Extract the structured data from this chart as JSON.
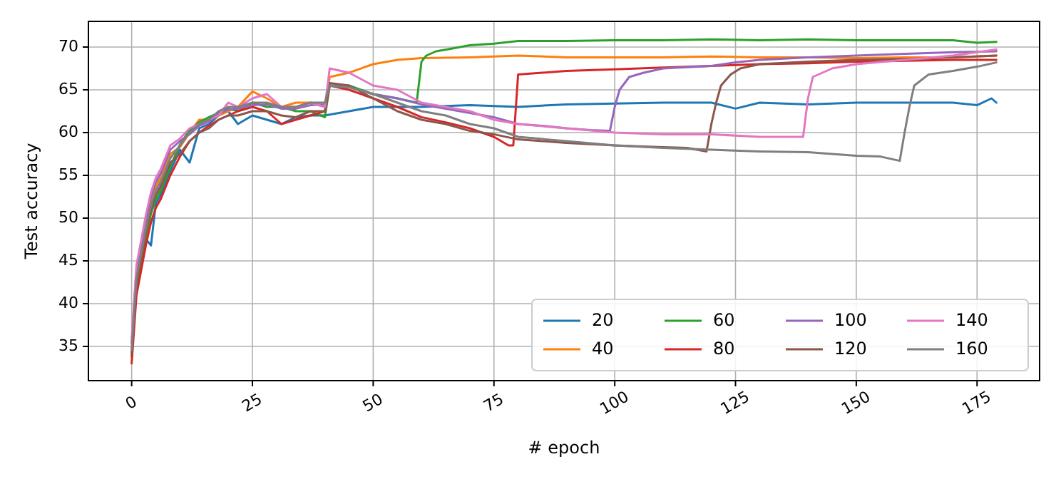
{
  "chart_data": {
    "type": "line",
    "xlabel": "# epoch",
    "ylabel": "Test accuracy",
    "xlim": [
      -8.95,
      187.95
    ],
    "xticks": [
      0,
      25,
      50,
      75,
      100,
      125,
      150,
      175
    ],
    "ylim": [
      31,
      73
    ],
    "yticks": [
      35,
      40,
      45,
      50,
      55,
      60,
      65,
      70
    ],
    "grid": true,
    "legend": "bottom right",
    "marker": "none",
    "line_style": "solid",
    "series": [
      {
        "name": "20",
        "color": "#1f77b4",
        "x": [
          2,
          3,
          4,
          5,
          6,
          8,
          10,
          12,
          14,
          16,
          18,
          20,
          22,
          25,
          28,
          31,
          34,
          37,
          40,
          45,
          50,
          60,
          70,
          80,
          90,
          100,
          110,
          120,
          125,
          130,
          140,
          150,
          160,
          170,
          175,
          178,
          179
        ],
        "values": [
          44.5,
          47.5,
          46.8,
          51.7,
          52.7,
          55.5,
          58,
          56.5,
          60.5,
          61,
          62,
          62.5,
          61,
          62,
          61.5,
          61,
          61.8,
          62,
          62,
          62.5,
          63,
          63,
          63.2,
          63,
          63.3,
          63.4,
          63.5,
          63.5,
          62.8,
          63.5,
          63.3,
          63.5,
          63.5,
          63.5,
          63.2,
          64,
          63.5
        ]
      },
      {
        "name": "40",
        "color": "#ff7f0e",
        "x": [
          3,
          4,
          5,
          6,
          8,
          10,
          12,
          14,
          16,
          18,
          20,
          22,
          25,
          28,
          31,
          34,
          37,
          40,
          41,
          45,
          50,
          55,
          60,
          70,
          80,
          90,
          100,
          110,
          120,
          130,
          140,
          150,
          160,
          170,
          179
        ],
        "values": [
          49.5,
          52,
          53.7,
          54.7,
          57.5,
          58.3,
          60,
          61.5,
          61.5,
          62,
          62.5,
          63,
          64.8,
          64,
          63,
          63.5,
          63.5,
          63,
          66.5,
          67,
          68,
          68.5,
          68.7,
          68.8,
          69,
          68.8,
          68.8,
          68.8,
          68.9,
          68.8,
          68.8,
          68.7,
          68.8,
          68.8,
          69
        ]
      },
      {
        "name": "60",
        "color": "#2ca02c",
        "x": [
          0,
          1,
          2,
          3,
          4,
          5,
          6,
          8,
          10,
          12,
          14,
          16,
          18,
          20,
          22,
          25,
          28,
          31,
          34,
          37,
          40,
          41,
          45,
          50,
          55,
          59,
          60,
          61,
          63,
          66,
          70,
          75,
          80,
          90,
          100,
          110,
          120,
          130,
          140,
          150,
          160,
          170,
          175,
          179
        ],
        "values": [
          33.8,
          42,
          45,
          48,
          50.5,
          52.2,
          53.2,
          56,
          58.6,
          60.3,
          61.2,
          61.8,
          62.3,
          62.8,
          62.5,
          63.5,
          63,
          63,
          62.5,
          62.5,
          61.8,
          65.5,
          65.5,
          64.5,
          64,
          63.5,
          68.3,
          69,
          69.5,
          69.8,
          70.2,
          70.4,
          70.7,
          70.7,
          70.8,
          70.8,
          70.9,
          70.8,
          70.9,
          70.8,
          70.8,
          70.8,
          70.5,
          70.6
        ]
      },
      {
        "name": "80",
        "color": "#d62728",
        "x": [
          0,
          1,
          2,
          3,
          4,
          5,
          6,
          8,
          10,
          12,
          14,
          16,
          18,
          20,
          22,
          25,
          28,
          31,
          34,
          37,
          40,
          41,
          45,
          50,
          55,
          60,
          65,
          70,
          75,
          78,
          79,
          80,
          85,
          90,
          100,
          110,
          120,
          125,
          130,
          140,
          150,
          160,
          170,
          179
        ],
        "values": [
          33,
          41,
          44,
          47,
          49.5,
          51.2,
          52.2,
          55,
          57.2,
          59,
          60,
          60.8,
          61.5,
          62,
          62.5,
          63,
          62.5,
          61,
          61.5,
          62,
          62.5,
          65.5,
          65,
          64,
          63,
          61.8,
          61.2,
          60.5,
          59.5,
          58.5,
          58.5,
          66.8,
          67,
          67.2,
          67.4,
          67.6,
          67.8,
          67.9,
          68,
          68.1,
          68.3,
          68.4,
          68.5,
          68.5
        ]
      },
      {
        "name": "100",
        "color": "#9467bd",
        "x": [
          0,
          1,
          2,
          3,
          4,
          5,
          6,
          8,
          10,
          12,
          14,
          16,
          18,
          20,
          22,
          25,
          28,
          31,
          34,
          37,
          40,
          41,
          45,
          50,
          55,
          60,
          65,
          70,
          75,
          80,
          85,
          90,
          95,
          99,
          100,
          101,
          103,
          106,
          110,
          120,
          125,
          130,
          140,
          150,
          160,
          170,
          179
        ],
        "values": [
          35.4,
          44,
          47,
          50,
          52.5,
          54.2,
          55.2,
          58,
          59,
          59.8,
          60.8,
          61.3,
          62.2,
          62.7,
          62.8,
          63.2,
          63.3,
          62.8,
          62.8,
          63.2,
          63.3,
          65.5,
          65.3,
          64.5,
          64,
          63.3,
          62.8,
          62.3,
          61.8,
          61,
          60.8,
          60.5,
          60.3,
          60.2,
          63,
          65,
          66.5,
          67,
          67.5,
          67.8,
          68.2,
          68.5,
          68.8,
          69,
          69.2,
          69.4,
          69.5
        ]
      },
      {
        "name": "120",
        "color": "#8c564b",
        "x": [
          0,
          1,
          2,
          3,
          4,
          5,
          6,
          8,
          10,
          12,
          14,
          16,
          18,
          20,
          22,
          25,
          28,
          31,
          34,
          37,
          40,
          41,
          45,
          50,
          55,
          60,
          65,
          70,
          75,
          80,
          90,
          100,
          110,
          115,
          119,
          120,
          121,
          122,
          124,
          126,
          130,
          140,
          150,
          160,
          170,
          179
        ],
        "values": [
          34.2,
          42.5,
          45.5,
          48.5,
          51,
          52.7,
          53.7,
          56.5,
          57.5,
          59,
          60,
          60.5,
          61.5,
          62,
          62,
          62.5,
          62.5,
          62,
          61.8,
          62.5,
          62.5,
          65.8,
          65.5,
          64,
          62.5,
          61.5,
          61,
          60.2,
          59.8,
          59.2,
          58.8,
          58.5,
          58.3,
          58.2,
          57.8,
          61,
          63.5,
          65.5,
          66.8,
          67.5,
          68,
          68.3,
          68.5,
          68.6,
          68.8,
          69
        ]
      },
      {
        "name": "140",
        "color": "#e377c2",
        "x": [
          0,
          1,
          2,
          3,
          4,
          5,
          6,
          8,
          10,
          12,
          14,
          16,
          18,
          20,
          22,
          25,
          28,
          31,
          34,
          37,
          40,
          41,
          45,
          50,
          55,
          60,
          65,
          70,
          75,
          80,
          90,
          100,
          110,
          120,
          130,
          139,
          140,
          141,
          143,
          145,
          150,
          160,
          170,
          179
        ],
        "values": [
          35.8,
          44.5,
          47.5,
          50.5,
          53,
          54.7,
          55.7,
          58.5,
          59.3,
          60.5,
          61,
          61.5,
          62,
          63.5,
          63,
          64,
          64.5,
          63,
          63,
          63.5,
          63,
          67.5,
          67,
          65.5,
          65,
          63.5,
          63,
          62.5,
          61.5,
          61,
          60.5,
          60,
          59.8,
          59.8,
          59.5,
          59.5,
          64,
          66.5,
          67,
          67.5,
          68,
          68.5,
          69,
          69.7
        ]
      },
      {
        "name": "160",
        "color": "#7f7f7f",
        "x": [
          0,
          1,
          2,
          3,
          4,
          5,
          6,
          8,
          10,
          12,
          14,
          16,
          18,
          20,
          22,
          25,
          28,
          31,
          34,
          37,
          40,
          41,
          45,
          50,
          55,
          60,
          65,
          70,
          75,
          80,
          90,
          100,
          110,
          120,
          130,
          140,
          150,
          155,
          159,
          160,
          161,
          162,
          165,
          170,
          175,
          179
        ],
        "values": [
          34.6,
          43,
          46,
          49,
          51.5,
          53.2,
          54.2,
          57,
          58.5,
          60,
          61,
          61.5,
          62.5,
          63,
          63,
          63.5,
          63.5,
          63,
          63,
          63.5,
          63.5,
          65.5,
          65.3,
          64.5,
          63.5,
          62.5,
          62,
          61,
          60.5,
          59.5,
          59,
          58.5,
          58.2,
          58,
          57.8,
          57.7,
          57.3,
          57.2,
          56.7,
          60,
          63,
          65.5,
          66.8,
          67.2,
          67.7,
          68.2
        ]
      }
    ]
  }
}
